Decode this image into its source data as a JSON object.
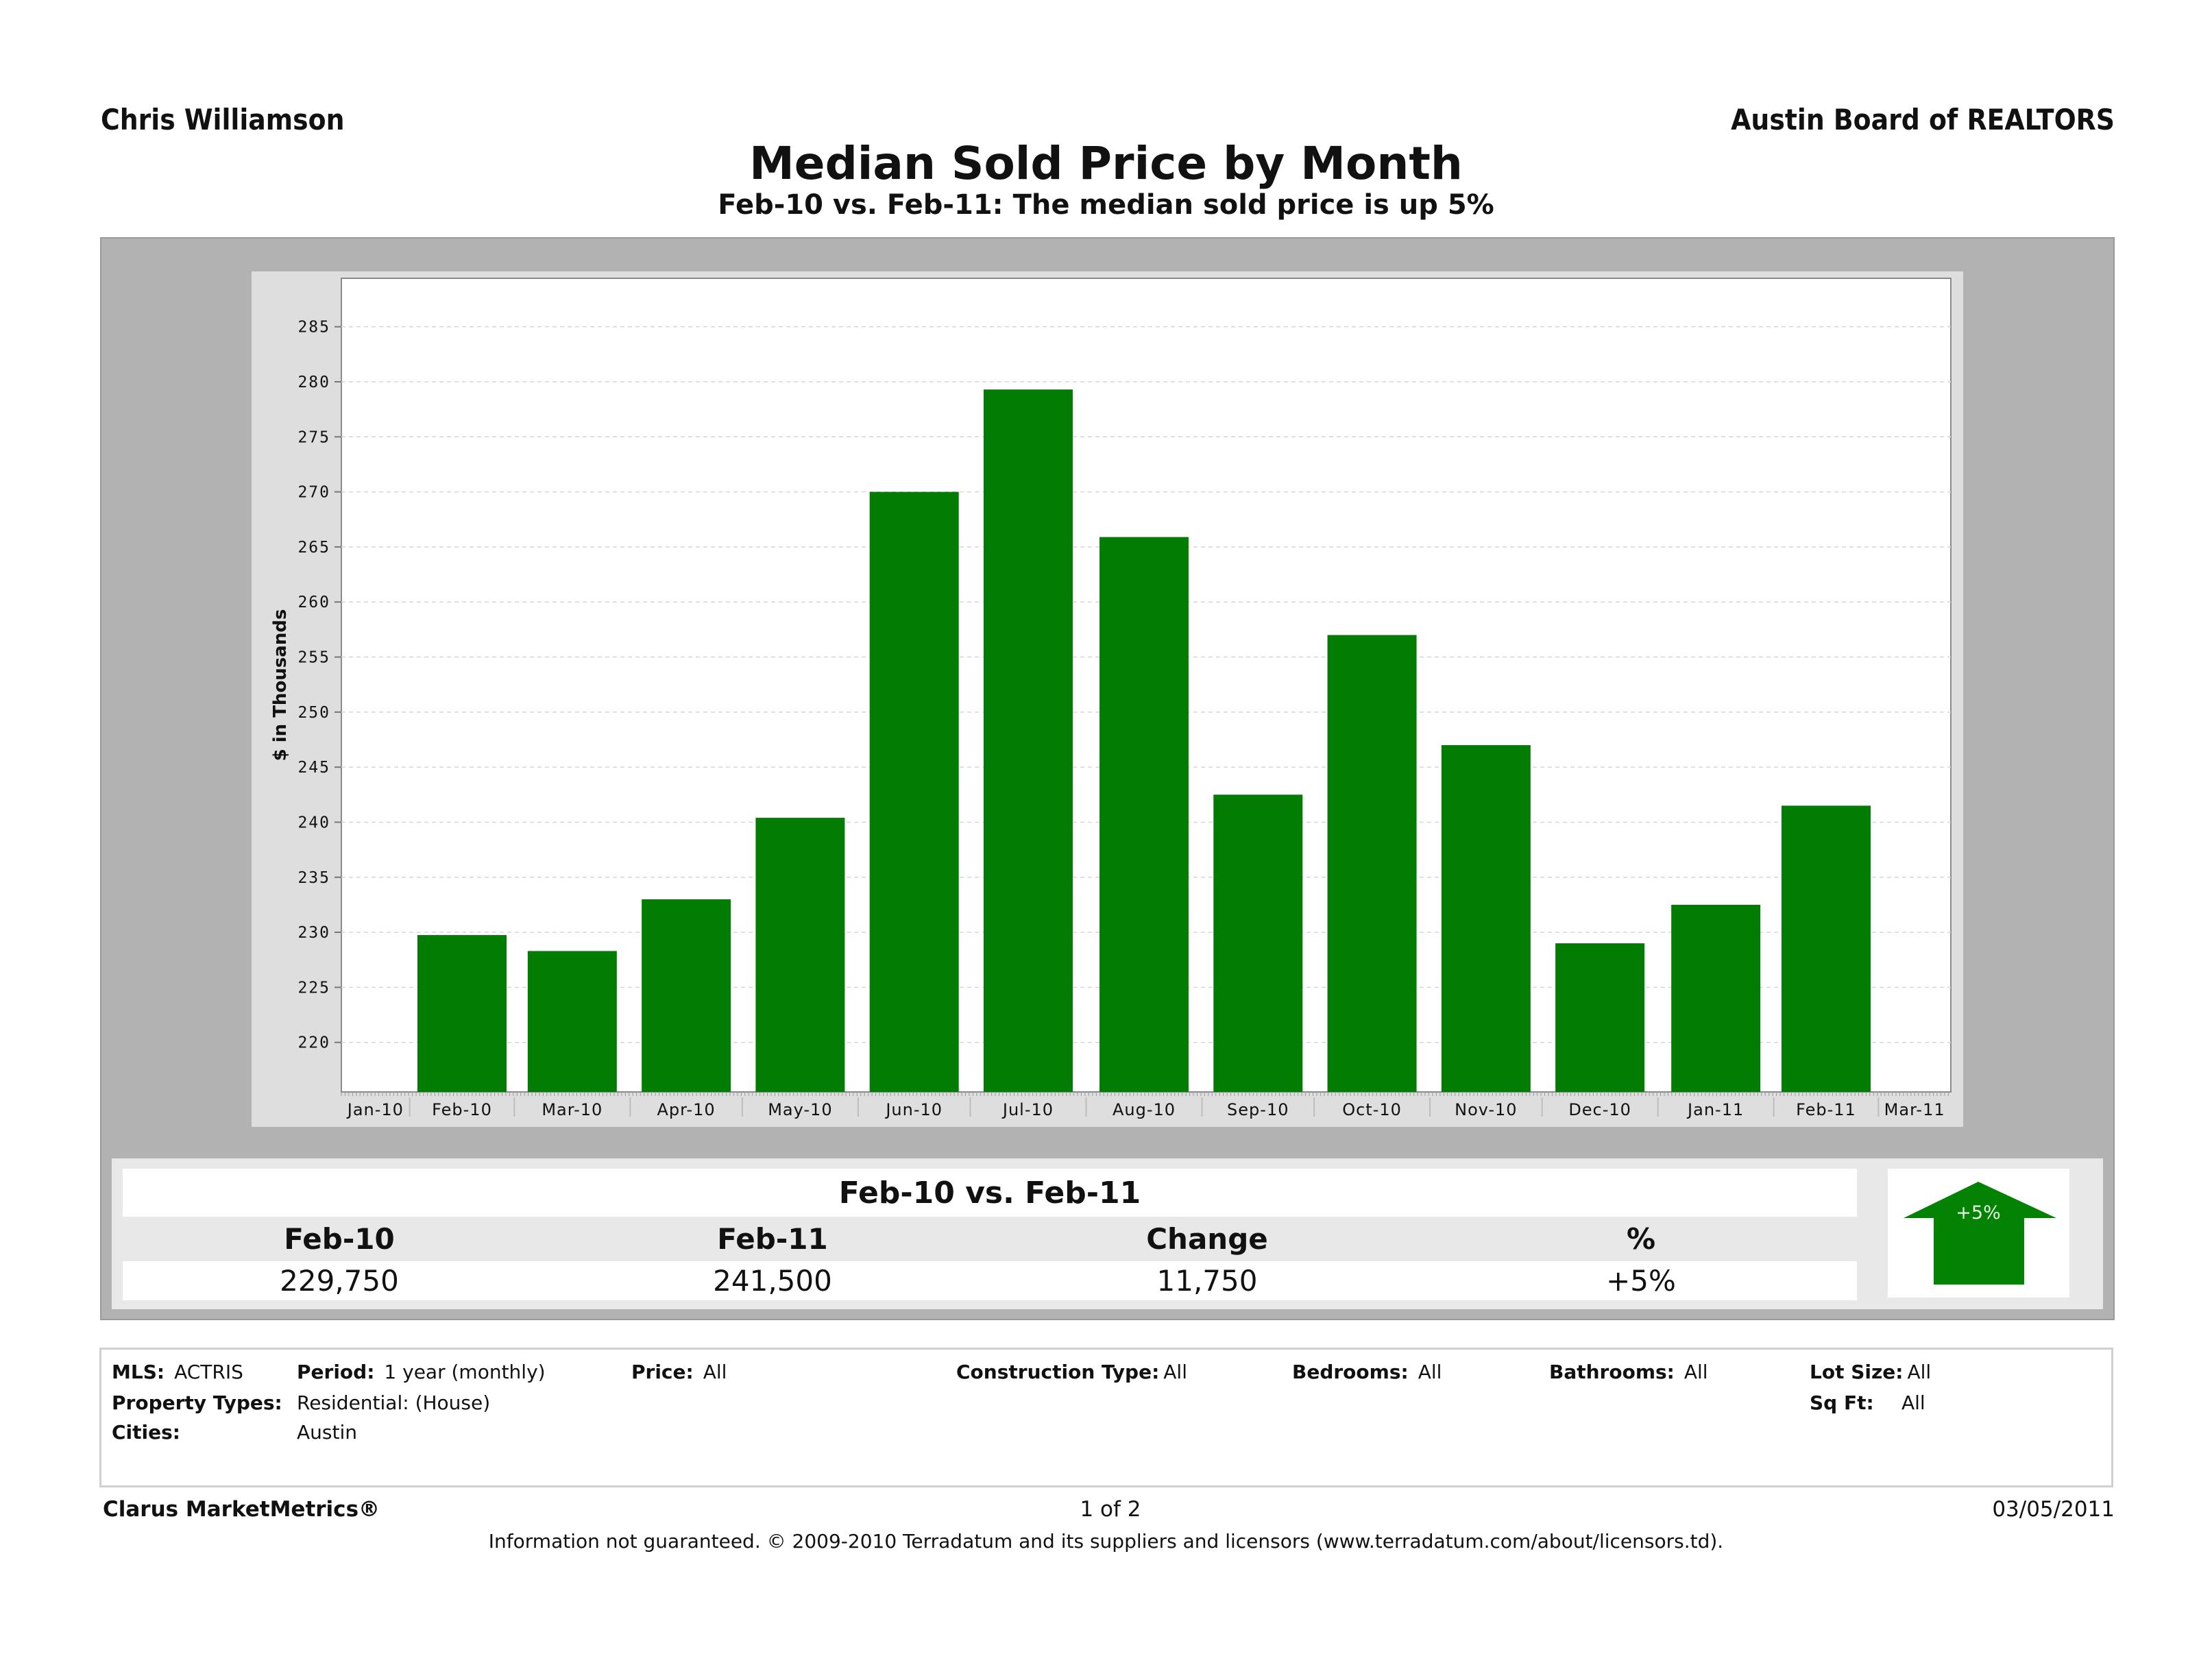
{
  "header": {
    "agent_name": "Chris Williamson",
    "board_name": "Austin Board of REALTORS",
    "title": "Median Sold Price by Month",
    "subtitle": "Feb-10 vs. Feb-11:  The median sold price is up 5%"
  },
  "colors": {
    "bar": "#037c03",
    "outer_panel": "#b2b2b2",
    "chart_panel": "#dedede",
    "arrow": "#038203"
  },
  "chart_data": {
    "type": "bar",
    "title": "Median Sold Price by Month",
    "xlabel": "",
    "ylabel": "$ in Thousands",
    "axis_months": [
      "Jan-10",
      "Feb-10",
      "Mar-10",
      "Apr-10",
      "May-10",
      "Jun-10",
      "Jul-10",
      "Aug-10",
      "Sep-10",
      "Oct-10",
      "Nov-10",
      "Dec-10",
      "Jan-11",
      "Feb-11",
      "Mar-11"
    ],
    "categories": [
      "Feb-10",
      "Mar-10",
      "Apr-10",
      "May-10",
      "Jun-10",
      "Jul-10",
      "Aug-10",
      "Sep-10",
      "Oct-10",
      "Nov-10",
      "Dec-10",
      "Jan-11",
      "Feb-11"
    ],
    "values": [
      229.75,
      228.3,
      233.0,
      240.4,
      270.0,
      279.3,
      265.9,
      242.5,
      257.0,
      247.0,
      229.0,
      232.5,
      241.5
    ],
    "yticks": [
      220,
      225,
      230,
      235,
      240,
      245,
      250,
      255,
      260,
      265,
      270,
      275,
      280,
      285
    ],
    "ylim": [
      215.5,
      289.4
    ],
    "grid": true,
    "legend": "none"
  },
  "summary": {
    "title": "Feb-10 vs. Feb-11",
    "headers": [
      "Feb-10",
      "Feb-11",
      "Change",
      "%"
    ],
    "values": [
      "229,750",
      "241,500",
      "11,750",
      "+5%"
    ],
    "arrow_label": "+5%",
    "arrow_direction": "up-arrow-icon"
  },
  "criteria": {
    "mls_label": "MLS:",
    "mls_value": "ACTRIS",
    "period_label": "Period:",
    "period_value": "1 year (monthly)",
    "price_label": "Price:",
    "price_value": "All",
    "construction_label": "Construction Type:",
    "construction_value": "All",
    "bedrooms_label": "Bedrooms:",
    "bedrooms_value": "All",
    "bathrooms_label": "Bathrooms:",
    "bathrooms_value": "All",
    "lot_label": "Lot Size:",
    "lot_value": "All",
    "property_label": "Property Types:",
    "property_value": "Residential: (House)",
    "sqft_label": "Sq Ft:",
    "sqft_value": "All",
    "cities_label": "Cities:",
    "cities_value": "Austin"
  },
  "footer": {
    "brand": "Clarus MarketMetrics®",
    "page": "1 of 2",
    "date": "03/05/2011",
    "disclaimer": "Information not guaranteed.  © 2009-2010 Terradatum and its suppliers and licensors (www.terradatum.com/about/licensors.td)."
  }
}
